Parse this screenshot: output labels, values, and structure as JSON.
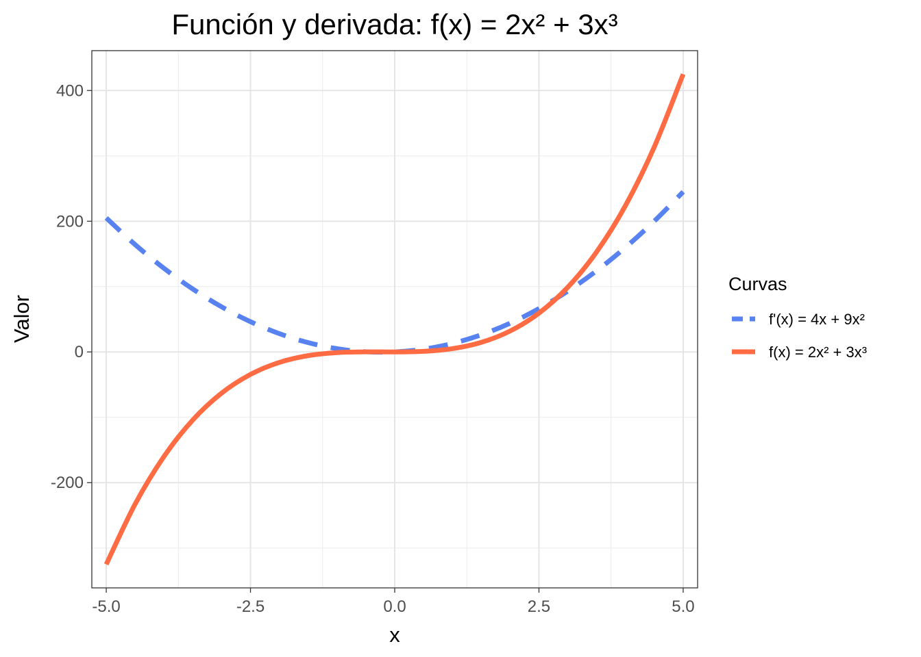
{
  "chart_data": {
    "type": "line",
    "title": "Función y derivada: f(x) = 2x² + 3x³",
    "xlabel": "x",
    "ylabel": "Valor",
    "xlim": [
      -5.25,
      5.25
    ],
    "ylim": [
      -361,
      461
    ],
    "x_ticks": [
      -5.0,
      -2.5,
      0.0,
      2.5,
      5.0
    ],
    "x_tick_labels": [
      "-5.0",
      "-2.5",
      "0.0",
      "2.5",
      "5.0"
    ],
    "y_ticks": [
      -200,
      0,
      200,
      400
    ],
    "y_tick_labels": [
      "-200",
      "0",
      "200",
      "400"
    ],
    "grid": true,
    "legend": {
      "title": "Curvas",
      "position": "right"
    },
    "x": [
      -5.0,
      -4.5,
      -4.0,
      -3.5,
      -3.0,
      -2.5,
      -2.0,
      -1.5,
      -1.0,
      -0.5,
      0.0,
      0.5,
      1.0,
      1.5,
      2.0,
      2.5,
      3.0,
      3.5,
      4.0,
      4.5,
      5.0
    ],
    "series": [
      {
        "name": "f'(x) = 4x + 9x²",
        "style": "dashed",
        "color": "#5882F0",
        "values": [
          205.0,
          164.25,
          128.0,
          96.25,
          69.0,
          46.25,
          28.0,
          14.25,
          5.0,
          0.25,
          0.0,
          4.25,
          13.0,
          26.25,
          44.0,
          66.25,
          93.0,
          124.25,
          160.0,
          200.25,
          245.0
        ]
      },
      {
        "name": "f(x) = 2x² + 3x³",
        "style": "solid",
        "color": "#FF6B42",
        "values": [
          -325.0,
          -232.875,
          -160.0,
          -104.125,
          -63.0,
          -34.375,
          -16.0,
          -5.625,
          -1.0,
          0.125,
          0.0,
          0.875,
          5.0,
          14.625,
          32.0,
          59.375,
          99.0,
          153.125,
          224.0,
          313.875,
          425.0
        ]
      }
    ]
  }
}
